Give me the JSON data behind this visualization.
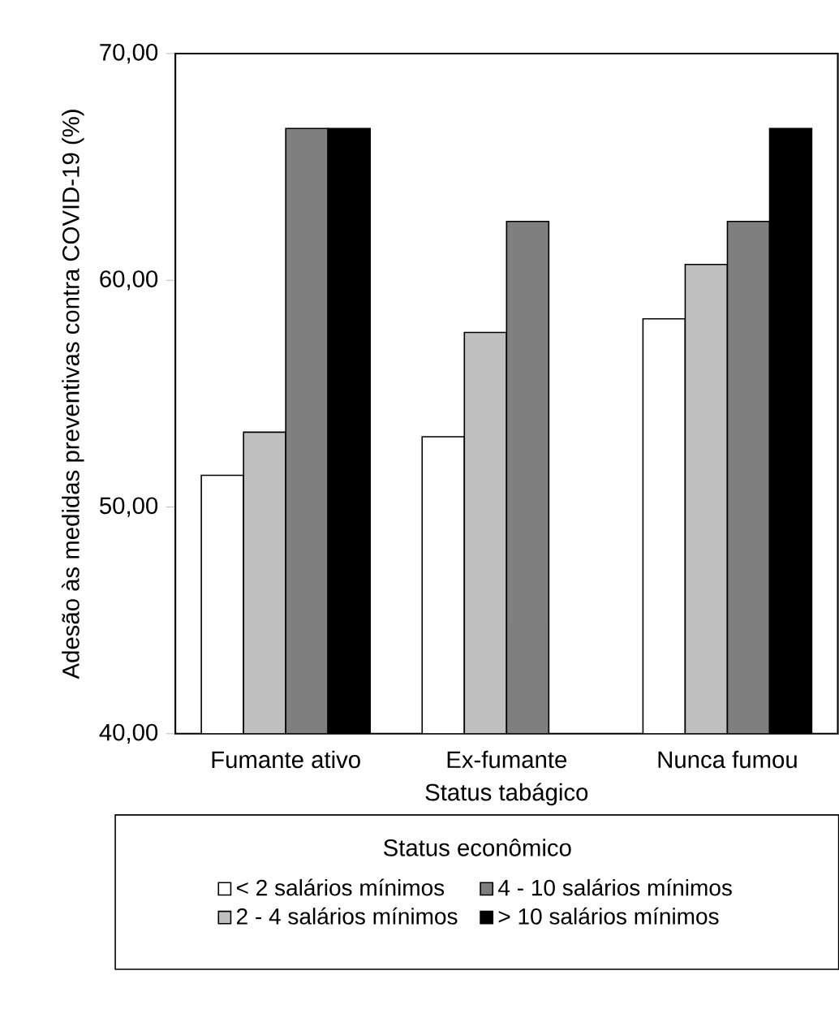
{
  "chart_data": {
    "type": "bar",
    "xlabel": "Status tabágico",
    "ylabel": "Adesão às medidas preventivas contra COVID-19 (%)",
    "legend_title": "Status econômico",
    "legend": "bottom",
    "categories": [
      "Fumante ativo",
      "Ex-fumante",
      "Nunca fumou"
    ],
    "series": [
      {
        "name": "< 2 salários mínimos",
        "color": "#ffffff",
        "values": [
          51.4,
          53.1,
          58.3
        ]
      },
      {
        "name": "2 - 4 salários mínimos",
        "color": "#c0c0c0",
        "values": [
          53.3,
          57.7,
          60.7
        ]
      },
      {
        "name": "4 - 10 salários mínimos",
        "color": "#7f7f7f",
        "values": [
          66.7,
          62.6,
          62.6
        ]
      },
      {
        "name": "> 10 salários mínimos",
        "color": "#000000",
        "values": [
          66.7,
          null,
          66.7
        ]
      }
    ],
    "ylim": [
      40,
      70
    ],
    "yticks": [
      {
        "value": 40,
        "label": "40,00"
      },
      {
        "value": 50,
        "label": "50,00"
      },
      {
        "value": 60,
        "label": "60,00"
      },
      {
        "value": 70,
        "label": "70,00"
      }
    ]
  }
}
